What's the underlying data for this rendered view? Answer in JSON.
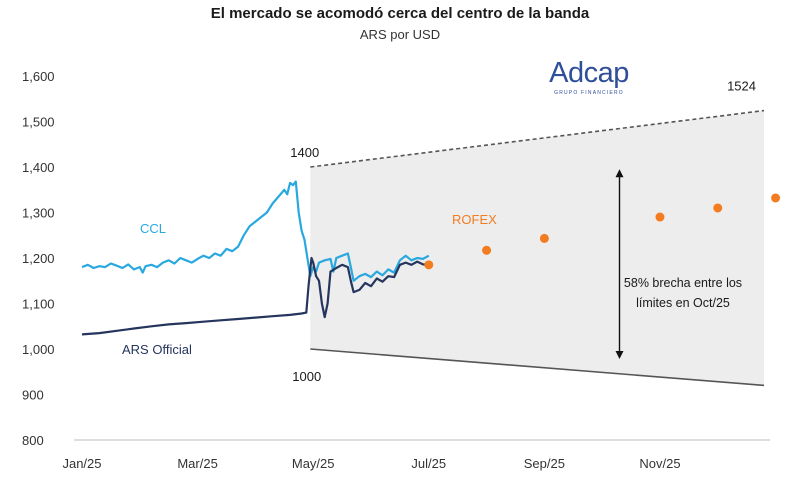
{
  "chart_data": {
    "type": "line",
    "title": "El mercado se acomodó cerca del centro de la banda",
    "subtitle": "ARS por USD",
    "ylim": [
      800,
      1600
    ],
    "yticks": [
      800,
      900,
      1000,
      1100,
      1200,
      1300,
      1400,
      1500,
      1600
    ],
    "ytick_labels": [
      "800",
      "900",
      "1,000",
      "1,100",
      "1,200",
      "1,300",
      "1,400",
      "1,500",
      "1,600"
    ],
    "xticks": [
      "Jan/25",
      "Mar/25",
      "May/25",
      "Jul/25",
      "Sep/25",
      "Nov/25"
    ],
    "xtick_months": [
      0,
      2,
      4,
      6,
      8,
      10
    ],
    "xlim_months": [
      0,
      11.8
    ],
    "grid": false,
    "series": [
      {
        "name": "CCL",
        "color": "#29a8e0",
        "points": [
          [
            0,
            1180
          ],
          [
            0.1,
            1185
          ],
          [
            0.2,
            1178
          ],
          [
            0.3,
            1182
          ],
          [
            0.4,
            1180
          ],
          [
            0.5,
            1188
          ],
          [
            0.6,
            1183
          ],
          [
            0.7,
            1178
          ],
          [
            0.8,
            1186
          ],
          [
            0.9,
            1175
          ],
          [
            1.0,
            1180
          ],
          [
            1.05,
            1168
          ],
          [
            1.1,
            1182
          ],
          [
            1.2,
            1185
          ],
          [
            1.3,
            1180
          ],
          [
            1.4,
            1190
          ],
          [
            1.5,
            1195
          ],
          [
            1.6,
            1188
          ],
          [
            1.7,
            1200
          ],
          [
            1.8,
            1195
          ],
          [
            1.9,
            1190
          ],
          [
            2.0,
            1198
          ],
          [
            2.1,
            1205
          ],
          [
            2.2,
            1200
          ],
          [
            2.3,
            1210
          ],
          [
            2.4,
            1205
          ],
          [
            2.5,
            1220
          ],
          [
            2.6,
            1215
          ],
          [
            2.7,
            1225
          ],
          [
            2.8,
            1250
          ],
          [
            2.9,
            1270
          ],
          [
            3.0,
            1280
          ],
          [
            3.1,
            1290
          ],
          [
            3.2,
            1300
          ],
          [
            3.3,
            1320
          ],
          [
            3.4,
            1335
          ],
          [
            3.5,
            1350
          ],
          [
            3.55,
            1340
          ],
          [
            3.6,
            1365
          ],
          [
            3.65,
            1360
          ],
          [
            3.7,
            1368
          ],
          [
            3.72,
            1340
          ],
          [
            3.75,
            1300
          ],
          [
            3.8,
            1260
          ],
          [
            3.85,
            1240
          ],
          [
            3.9,
            1200
          ],
          [
            3.95,
            1160
          ],
          [
            4.0,
            1180
          ],
          [
            4.05,
            1170
          ],
          [
            4.1,
            1190
          ],
          [
            4.2,
            1195
          ],
          [
            4.3,
            1198
          ],
          [
            4.35,
            1170
          ],
          [
            4.4,
            1200
          ],
          [
            4.5,
            1205
          ],
          [
            4.6,
            1210
          ],
          [
            4.65,
            1180
          ],
          [
            4.7,
            1150
          ],
          [
            4.8,
            1160
          ],
          [
            4.9,
            1165
          ],
          [
            5.0,
            1158
          ],
          [
            5.1,
            1170
          ],
          [
            5.2,
            1162
          ],
          [
            5.3,
            1175
          ],
          [
            5.4,
            1168
          ],
          [
            5.5,
            1195
          ],
          [
            5.6,
            1205
          ],
          [
            5.7,
            1195
          ],
          [
            5.8,
            1200
          ],
          [
            5.9,
            1198
          ],
          [
            6.0,
            1205
          ]
        ]
      },
      {
        "name": "ARS Official",
        "color": "#26355d",
        "points": [
          [
            0,
            1032
          ],
          [
            0.3,
            1035
          ],
          [
            0.6,
            1040
          ],
          [
            0.9,
            1045
          ],
          [
            1.2,
            1050
          ],
          [
            1.5,
            1054
          ],
          [
            1.8,
            1057
          ],
          [
            2.1,
            1060
          ],
          [
            2.4,
            1063
          ],
          [
            2.7,
            1066
          ],
          [
            3.0,
            1069
          ],
          [
            3.3,
            1072
          ],
          [
            3.6,
            1075
          ],
          [
            3.8,
            1078
          ],
          [
            3.88,
            1080
          ],
          [
            3.92,
            1140
          ],
          [
            3.97,
            1200
          ],
          [
            4.0,
            1190
          ],
          [
            4.05,
            1160
          ],
          [
            4.1,
            1150
          ],
          [
            4.15,
            1100
          ],
          [
            4.2,
            1070
          ],
          [
            4.25,
            1100
          ],
          [
            4.3,
            1170
          ],
          [
            4.4,
            1178
          ],
          [
            4.5,
            1185
          ],
          [
            4.6,
            1180
          ],
          [
            4.65,
            1150
          ],
          [
            4.7,
            1125
          ],
          [
            4.8,
            1130
          ],
          [
            4.9,
            1145
          ],
          [
            5.0,
            1138
          ],
          [
            5.1,
            1155
          ],
          [
            5.2,
            1148
          ],
          [
            5.3,
            1160
          ],
          [
            5.4,
            1158
          ],
          [
            5.5,
            1185
          ],
          [
            5.6,
            1190
          ],
          [
            5.7,
            1185
          ],
          [
            5.8,
            1192
          ],
          [
            5.9,
            1186
          ],
          [
            6.0,
            1185
          ]
        ]
      }
    ],
    "rofex": {
      "name": "ROFEX",
      "color": "#f47c20",
      "points": [
        [
          6.0,
          1185
        ],
        [
          7.0,
          1217
        ],
        [
          8.0,
          1243
        ],
        [
          10.0,
          1290
        ],
        [
          11.0,
          1310
        ],
        [
          12.0,
          1332
        ]
      ]
    },
    "band": {
      "start_month": 3.95,
      "end_month": 11.8,
      "upper_start": 1400,
      "upper_end": 1524,
      "lower_start": 1000,
      "lower_end": 920
    },
    "annotations": {
      "upper_start_label": "1400",
      "upper_end_label": "1524",
      "lower_start_label": "1000",
      "gap_text_line1": "58% brecha entre los",
      "gap_text_line2": "límites en  Oct/25",
      "gap_arrow_month": 9.3,
      "gap_arrow_top": 1395,
      "gap_arrow_bottom": 978
    },
    "series_labels": {
      "ccl": "CCL",
      "official": "ARS Official",
      "rofex": "ROFEX"
    }
  },
  "logo": {
    "name": "Adcap",
    "tagline": "GRUPO FINANCIERO",
    "color": "#2f4f9a"
  }
}
